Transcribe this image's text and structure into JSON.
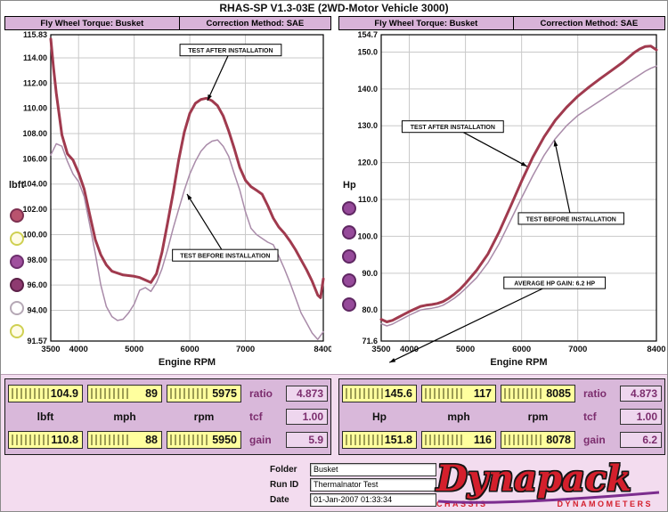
{
  "title": "RHAS-SP V1.3-03E (2WD-Motor Vehicle 3000)",
  "torque_header": {
    "left": "Fly Wheel Torque: Busket",
    "right": "Correction Method: SAE"
  },
  "hp_header": {
    "left": "Fly Wheel Torque: Busket",
    "right": "Correction Method: SAE"
  },
  "chart_data": [
    {
      "type": "line",
      "xlabel": "Engine RPM",
      "ylabel": "lbft",
      "xlim": [
        3500,
        8400
      ],
      "ylim": [
        91.57,
        115.83
      ],
      "xticks": [
        3500,
        4000,
        5000,
        6000,
        7000,
        8400
      ],
      "xtick_labels": [
        "3500",
        "4000",
        "5000",
        "6000",
        "7000",
        "8400"
      ],
      "yticks": [
        115.83,
        114.0,
        112.0,
        110.0,
        108.0,
        106.0,
        104.0,
        102.0,
        100.0,
        98.0,
        96.0,
        94.0,
        91.57
      ],
      "ytick_labels": [
        "115.83",
        "114.00",
        "112.00",
        "110.00",
        "108.00",
        "106.00",
        "104.00",
        "102.00",
        "100.00",
        "98.00",
        "96.00",
        "94.00",
        "91.57"
      ],
      "grid": true,
      "series": [
        {
          "name": "TEST AFTER INSTALLATION",
          "name_id": "torque-after-curve",
          "color": "#a03a4e",
          "width": 3,
          "x": [
            3500,
            3550,
            3600,
            3700,
            3800,
            3900,
            4000,
            4100,
            4200,
            4300,
            4400,
            4500,
            4600,
            4800,
            5000,
            5100,
            5200,
            5300,
            5400,
            5500,
            5600,
            5700,
            5800,
            5900,
            6000,
            6100,
            6200,
            6300,
            6400,
            6500,
            6600,
            6700,
            6800,
            6900,
            7000,
            7100,
            7200,
            7300,
            7400,
            7500,
            7600,
            7700,
            7800,
            7900,
            8000,
            8100,
            8200,
            8300,
            8350,
            8400
          ],
          "y": [
            115.5,
            113.2,
            111.2,
            107.9,
            106.4,
            105.9,
            104.9,
            103.6,
            101.6,
            99.6,
            98.4,
            97.6,
            97.1,
            96.8,
            96.7,
            96.6,
            96.4,
            96.2,
            96.9,
            98.6,
            100.9,
            103.3,
            105.9,
            108.1,
            109.6,
            110.4,
            110.7,
            110.8,
            110.6,
            110.2,
            109.4,
            108.2,
            106.8,
            105.3,
            104.3,
            103.8,
            103.5,
            103.2,
            102.3,
            101.3,
            100.6,
            100.1,
            99.5,
            98.8,
            98.0,
            97.2,
            96.3,
            95.2,
            95.0,
            96.5
          ]
        },
        {
          "name": "TEST BEFORE INSTALLATION",
          "name_id": "torque-before-curve",
          "color": "#a98ba9",
          "width": 1.5,
          "x": [
            3500,
            3600,
            3700,
            3800,
            3900,
            4000,
            4100,
            4200,
            4300,
            4400,
            4500,
            4600,
            4700,
            4800,
            4900,
            5000,
            5100,
            5200,
            5300,
            5400,
            5500,
            5600,
            5700,
            5800,
            5900,
            6000,
            6100,
            6200,
            6300,
            6400,
            6500,
            6600,
            6700,
            6800,
            6900,
            7000,
            7100,
            7200,
            7300,
            7400,
            7500,
            7600,
            7700,
            7800,
            7900,
            8000,
            8100,
            8200,
            8300,
            8400
          ],
          "y": [
            106.3,
            107.2,
            107.0,
            105.8,
            104.8,
            104.2,
            103.0,
            100.8,
            98.5,
            96.0,
            94.3,
            93.5,
            93.2,
            93.3,
            93.8,
            94.5,
            95.6,
            95.8,
            95.5,
            96.2,
            97.3,
            98.8,
            100.5,
            102.0,
            103.5,
            104.8,
            105.8,
            106.6,
            107.1,
            107.4,
            107.5,
            107.0,
            106.2,
            104.8,
            103.5,
            101.8,
            100.5,
            100.0,
            99.7,
            99.4,
            99.2,
            98.3,
            97.3,
            96.2,
            95.0,
            93.8,
            93.0,
            92.2,
            91.7,
            92.3
          ]
        }
      ],
      "annotations": [
        {
          "text": "TEST AFTER INSTALLATION",
          "bx": 0.66,
          "by": 0.05,
          "ax": 0.575,
          "ay": 0.215,
          "arrow": true
        },
        {
          "text": "TEST BEFORE INSTALLATION",
          "bx": 0.64,
          "by": 0.72,
          "ax": 0.5,
          "ay": 0.52,
          "arrow": true
        }
      ],
      "indicator_colors": [
        {
          "fill": "#b9536e",
          "stroke": "#7d3050"
        },
        {
          "fill": "#fffce6",
          "stroke": "#cfd052"
        },
        {
          "fill": "#a0509e",
          "stroke": "#6e2f6e"
        },
        {
          "fill": "#8e3a70",
          "stroke": "#5c2148"
        },
        {
          "fill": "#ffffff",
          "stroke": "#b5a8b5"
        },
        {
          "fill": "#fffce6",
          "stroke": "#cfd052"
        }
      ]
    },
    {
      "type": "line",
      "xlabel": "Engine RPM",
      "ylabel": "Hp",
      "xlim": [
        3500,
        8400
      ],
      "ylim": [
        71.6,
        154.7
      ],
      "xticks": [
        3500,
        4000,
        5000,
        6000,
        7000,
        8400
      ],
      "xtick_labels": [
        "3500",
        "4000",
        "5000",
        "6000",
        "7000",
        "8400"
      ],
      "yticks": [
        154.7,
        150.0,
        140.0,
        130.0,
        120.0,
        110.0,
        100.0,
        90.0,
        80.0,
        71.6
      ],
      "ytick_labels": [
        "154.7",
        "150.0",
        "140.0",
        "130.0",
        "120.0",
        "110.0",
        "100.0",
        "90.0",
        "80.0",
        "71.6"
      ],
      "grid": true,
      "series": [
        {
          "name": "TEST AFTER INSTALLATION",
          "name_id": "hp-after-curve",
          "color": "#a03a4e",
          "width": 3,
          "x": [
            3500,
            3600,
            3700,
            3800,
            3900,
            4000,
            4100,
            4200,
            4300,
            4400,
            4500,
            4600,
            4700,
            4800,
            4900,
            5000,
            5200,
            5400,
            5600,
            5800,
            6000,
            6200,
            6400,
            6600,
            6800,
            7000,
            7200,
            7400,
            7600,
            7800,
            8000,
            8100,
            8200,
            8300,
            8400
          ],
          "y": [
            77.5,
            76.8,
            77.2,
            78.0,
            78.8,
            79.6,
            80.3,
            81.0,
            81.3,
            81.5,
            81.8,
            82.3,
            83.2,
            84.3,
            85.6,
            87.2,
            90.8,
            95.2,
            101.2,
            108.0,
            115.0,
            121.5,
            127.0,
            131.5,
            135.0,
            138.0,
            140.5,
            142.8,
            145.0,
            147.2,
            149.8,
            150.8,
            151.5,
            151.6,
            150.6
          ]
        },
        {
          "name": "TEST BEFORE INSTALLATION",
          "name_id": "hp-before-curve",
          "color": "#a98ba9",
          "width": 1.5,
          "x": [
            3500,
            3600,
            3700,
            3800,
            3900,
            4000,
            4100,
            4200,
            4300,
            4400,
            4500,
            4600,
            4700,
            4800,
            4900,
            5000,
            5200,
            5400,
            5600,
            5800,
            6000,
            6200,
            6400,
            6600,
            6800,
            7000,
            7200,
            7400,
            7600,
            7800,
            8000,
            8100,
            8200,
            8300,
            8400
          ],
          "y": [
            76.3,
            75.7,
            76.2,
            77.0,
            77.8,
            78.6,
            79.3,
            80.0,
            80.3,
            80.5,
            80.8,
            81.3,
            82.2,
            83.2,
            84.4,
            85.8,
            88.8,
            92.8,
            98.0,
            104.2,
            110.5,
            116.5,
            122.0,
            126.5,
            130.0,
            132.8,
            134.8,
            136.8,
            138.8,
            140.8,
            142.8,
            143.8,
            144.8,
            145.6,
            146.2
          ]
        }
      ],
      "annotations": [
        {
          "text": "TEST AFTER INSTALLATION",
          "bx": 0.26,
          "by": 0.3,
          "ax": 0.53,
          "ay": 0.43,
          "arrow": true
        },
        {
          "text": "TEST BEFORE INSTALLATION",
          "bx": 0.69,
          "by": 0.6,
          "ax": 0.63,
          "ay": 0.345,
          "arrow": true
        },
        {
          "text": "AVERAGE HP GAIN: 6.2 HP",
          "bx": 0.63,
          "by": 0.81,
          "ax": 0.03,
          "ay": 1.07,
          "arrow": true
        }
      ],
      "indicator_colors": [
        {
          "fill": "#964a9a",
          "stroke": "#5f2762"
        },
        {
          "fill": "#964a9a",
          "stroke": "#5f2762"
        },
        {
          "fill": "#964a9a",
          "stroke": "#5f2762"
        },
        {
          "fill": "#964a9a",
          "stroke": "#5f2762"
        },
        {
          "fill": "#964a9a",
          "stroke": "#5f2762"
        }
      ]
    }
  ],
  "left_panel": {
    "top_values": [
      "104.9",
      "89",
      "5975"
    ],
    "unit_labels": [
      "lbft",
      "mph",
      "rpm"
    ],
    "bottom_values": [
      "110.8",
      "88",
      "5950"
    ],
    "ratio_label": "ratio",
    "ratio_value": "4.873",
    "tcf_label": "tcf",
    "tcf_value": "1.00",
    "gain_label": "gain",
    "gain_value": "5.9"
  },
  "right_panel": {
    "top_values": [
      "145.6",
      "117",
      "8085"
    ],
    "unit_labels": [
      "Hp",
      "mph",
      "rpm"
    ],
    "bottom_values": [
      "151.8",
      "116",
      "8078"
    ],
    "ratio_label": "ratio",
    "ratio_value": "4.873",
    "tcf_label": "tcf",
    "tcf_value": "1.00",
    "gain_label": "gain",
    "gain_value": "6.2"
  },
  "footer": {
    "fields": [
      {
        "label": "Folder",
        "value": "Busket"
      },
      {
        "label": "Run ID",
        "value": "Thermalnator Test"
      },
      {
        "label": "Date",
        "value": "01-Jan-2007 01:33:34"
      }
    ],
    "brand_name": "Dynapack",
    "brand_sub_left": "CHASSIS",
    "brand_sub_right": "DYNAMOMETERS"
  }
}
